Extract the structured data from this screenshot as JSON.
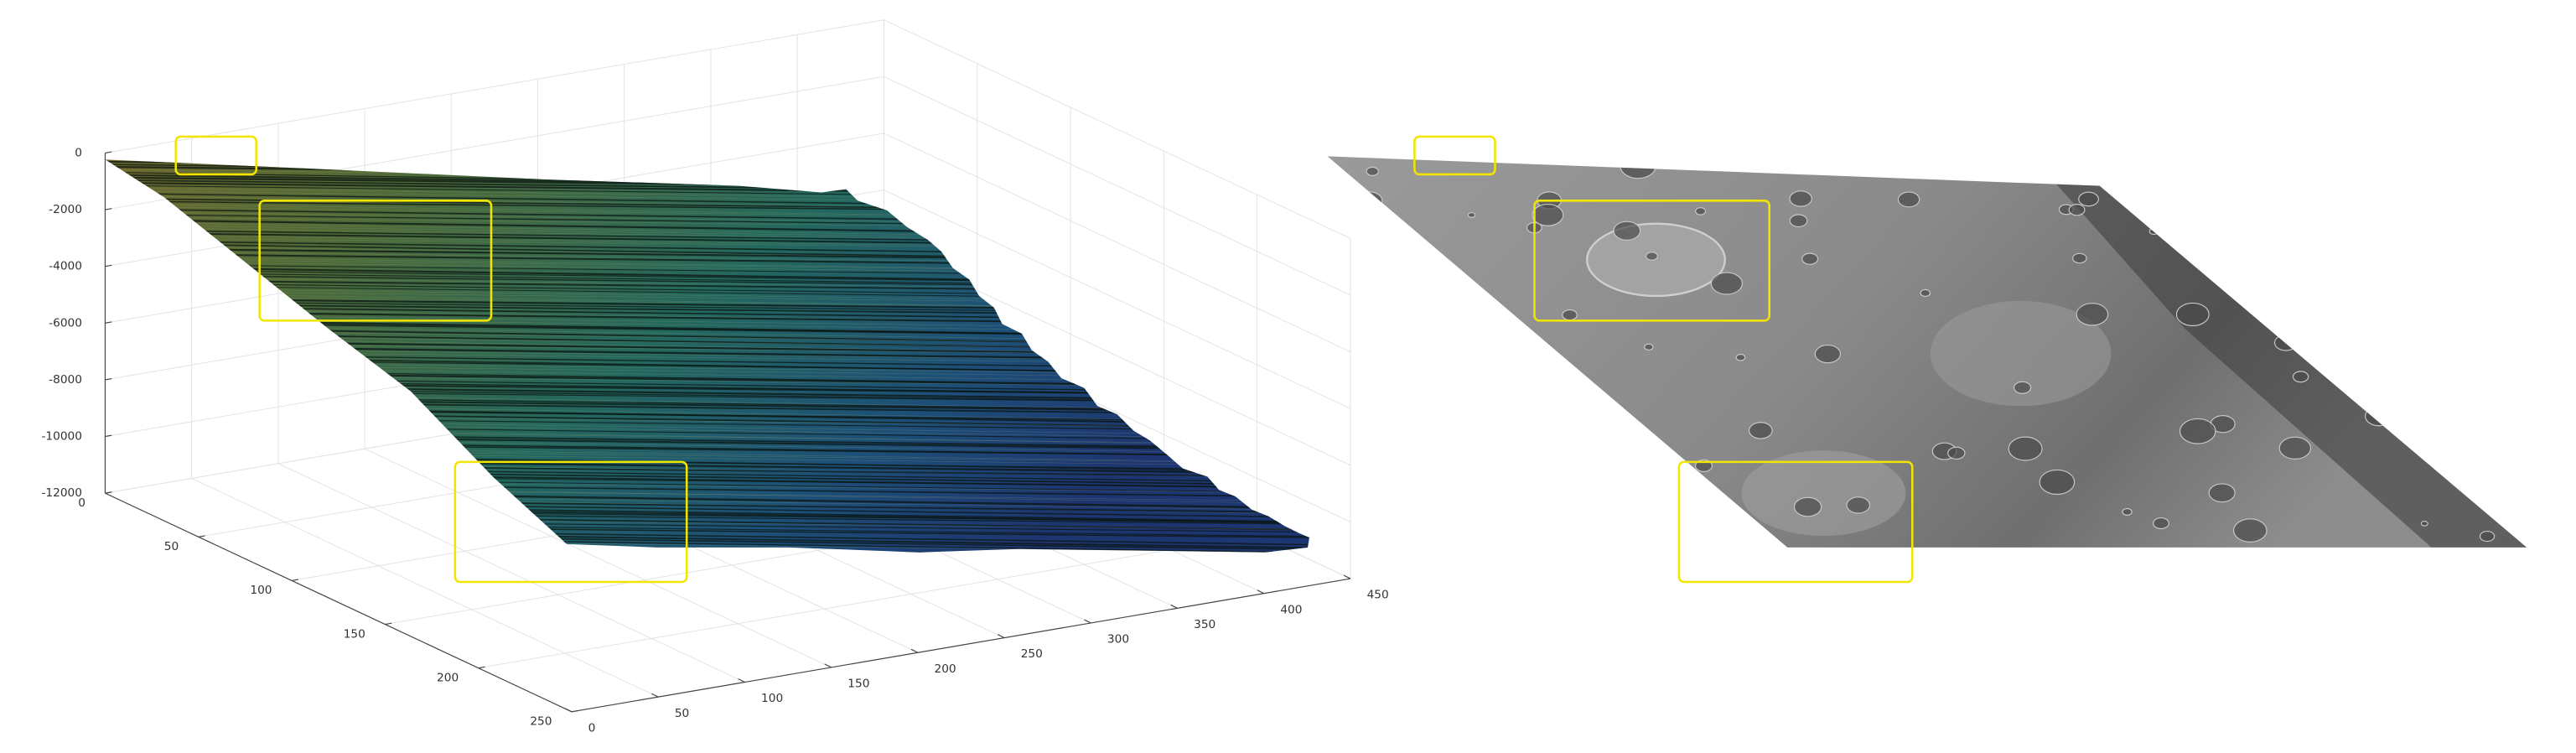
{
  "chart_data": {
    "type": "surface",
    "xlim": [
      0,
      450
    ],
    "xticks": [
      0,
      50,
      100,
      150,
      200,
      250,
      300,
      350,
      400,
      450
    ],
    "ylim": [
      0,
      250
    ],
    "yticks": [
      0,
      50,
      100,
      150,
      200,
      250
    ],
    "zlim": [
      -12000,
      0
    ],
    "zticks": [
      0,
      -2000,
      -4000,
      -6000,
      -8000,
      -10000,
      -12000
    ],
    "grid": true
  }
}
